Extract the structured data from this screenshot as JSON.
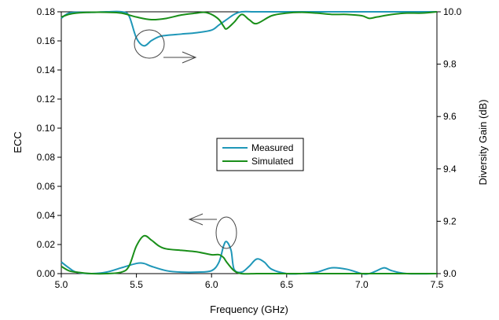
{
  "chart_data": {
    "type": "line",
    "xlabel": "Frequency (GHz)",
    "ylabel": "ECC",
    "y2label": "Diversity Gain (dB)",
    "xlim": [
      5.0,
      7.5
    ],
    "ylim": [
      0.0,
      0.18
    ],
    "y2lim": [
      9.0,
      10.0
    ],
    "x_ticks": [
      "5.0",
      "5.5",
      "6.0",
      "6.5",
      "7.0",
      "7.5"
    ],
    "y_ticks": [
      "0.00",
      "0.02",
      "0.04",
      "0.06",
      "0.08",
      "0.10",
      "0.12",
      "0.14",
      "0.16",
      "0.18"
    ],
    "y2_ticks": [
      "9.0",
      "9.2",
      "9.4",
      "9.6",
      "9.8",
      "10.0"
    ],
    "grid": false,
    "legend": {
      "position": "center",
      "entries": [
        "Measured",
        "Simulated"
      ]
    },
    "series": [
      {
        "name": "Measured",
        "quantity": "ECC",
        "axis": "left",
        "color": "#1f97b8",
        "x": [
          5.0,
          5.05,
          5.1,
          5.2,
          5.3,
          5.4,
          5.5,
          5.55,
          5.6,
          5.7,
          5.8,
          5.9,
          6.0,
          6.05,
          6.08,
          6.1,
          6.13,
          6.15,
          6.2,
          6.25,
          6.3,
          6.35,
          6.4,
          6.5,
          6.6,
          6.7,
          6.8,
          6.9,
          7.0,
          7.05,
          7.1,
          7.15,
          7.2,
          7.3,
          7.5
        ],
        "y": [
          0.008,
          0.004,
          0.001,
          0.0,
          0.001,
          0.004,
          0.007,
          0.007,
          0.005,
          0.002,
          0.001,
          0.001,
          0.002,
          0.008,
          0.019,
          0.022,
          0.016,
          0.003,
          0.001,
          0.005,
          0.01,
          0.008,
          0.003,
          0.0,
          0.0,
          0.001,
          0.004,
          0.003,
          0.0,
          0.0,
          0.002,
          0.004,
          0.002,
          0.0,
          0.0
        ]
      },
      {
        "name": "Simulated",
        "quantity": "ECC",
        "axis": "left",
        "color": "#1a8f1a",
        "x": [
          5.0,
          5.05,
          5.1,
          5.2,
          5.3,
          5.4,
          5.45,
          5.5,
          5.55,
          5.6,
          5.65,
          5.7,
          5.8,
          5.9,
          6.0,
          6.05,
          6.08,
          6.1,
          6.15,
          6.2,
          6.3,
          6.4,
          6.5,
          7.5
        ],
        "y": [
          0.005,
          0.002,
          0.001,
          0.0,
          0.0,
          0.001,
          0.005,
          0.019,
          0.026,
          0.023,
          0.019,
          0.017,
          0.016,
          0.015,
          0.013,
          0.013,
          0.011,
          0.008,
          0.002,
          0.0,
          0.0,
          0.0,
          0.0,
          0.0
        ]
      },
      {
        "name": "Measured",
        "quantity": "Diversity Gain",
        "axis": "right",
        "color": "#1f97b8",
        "x": [
          5.0,
          5.02,
          5.05,
          5.1,
          5.2,
          5.3,
          5.4,
          5.45,
          5.5,
          5.55,
          5.6,
          5.65,
          5.7,
          5.8,
          5.9,
          6.0,
          6.05,
          6.1,
          6.15,
          6.2,
          6.3,
          6.5,
          7.5
        ],
        "y": [
          9.975,
          9.985,
          9.995,
          9.998,
          9.998,
          10.0,
          10.0,
          9.985,
          9.9,
          9.87,
          9.89,
          9.905,
          9.91,
          9.915,
          9.92,
          9.93,
          9.95,
          9.97,
          9.99,
          10.0,
          10.0,
          10.0,
          10.0
        ]
      },
      {
        "name": "Simulated",
        "quantity": "Diversity Gain",
        "axis": "right",
        "color": "#1a8f1a",
        "x": [
          5.0,
          5.05,
          5.1,
          5.2,
          5.3,
          5.4,
          5.5,
          5.6,
          5.7,
          5.8,
          5.9,
          5.95,
          6.0,
          6.05,
          6.08,
          6.1,
          6.15,
          6.2,
          6.25,
          6.3,
          6.4,
          6.5,
          6.6,
          6.7,
          6.8,
          6.9,
          7.0,
          7.05,
          7.1,
          7.2,
          7.3,
          7.4,
          7.5
        ],
        "y": [
          9.98,
          9.99,
          9.995,
          9.998,
          9.998,
          9.995,
          9.98,
          9.97,
          9.975,
          9.988,
          9.995,
          9.998,
          9.99,
          9.97,
          9.945,
          9.935,
          9.96,
          9.99,
          9.97,
          9.955,
          9.985,
          9.995,
          9.998,
          9.995,
          9.99,
          9.99,
          9.985,
          9.975,
          9.98,
          9.99,
          9.995,
          9.995,
          10.0
        ]
      }
    ]
  }
}
